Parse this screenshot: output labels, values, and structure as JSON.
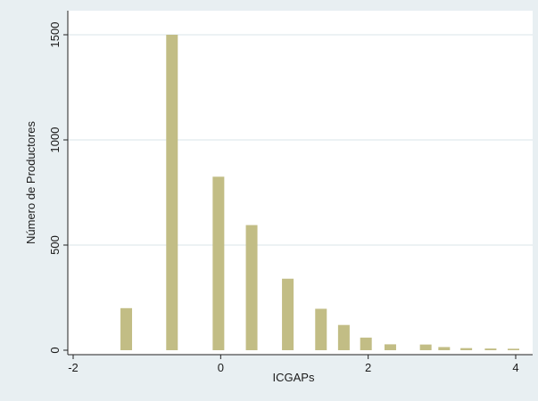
{
  "chart_data": {
    "type": "bar",
    "title": "",
    "xlabel": "ICGAPs",
    "ylabel": "Número de Productores",
    "xlim": [
      -2.1,
      4.1
    ],
    "ylim": [
      0,
      1500
    ],
    "x_ticks": [
      -2,
      0,
      2,
      4
    ],
    "y_ticks": [
      0,
      500,
      1000,
      1500
    ],
    "grid": "horizontal",
    "bar_color": "#c2bd85",
    "x": [
      -1.28,
      -0.66,
      -0.03,
      0.42,
      0.91,
      1.36,
      1.67,
      1.97,
      2.3,
      2.78,
      3.03,
      3.33,
      3.66,
      3.97
    ],
    "values": [
      200,
      1500,
      825,
      595,
      340,
      197,
      120,
      60,
      28,
      27,
      15,
      10,
      8,
      7
    ]
  },
  "colors": {
    "page_background": "#e8eff2",
    "plot_background": "#ffffff",
    "gridline": "#dae5e8",
    "bar": "#c2bd85"
  }
}
